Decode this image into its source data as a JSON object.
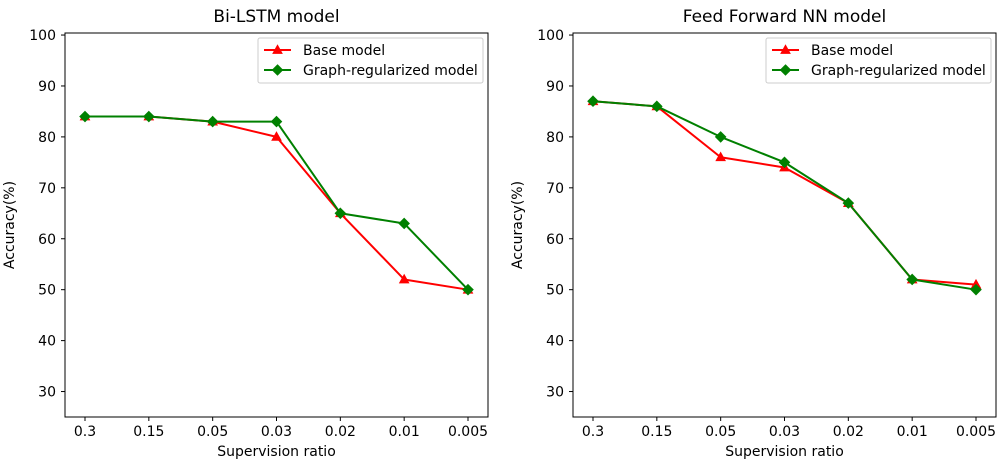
{
  "figure": {
    "background": "#ffffff",
    "text_color": "#000000",
    "legend_border_color": "#cccccc",
    "legend_background": "#ffffff"
  },
  "chart_data": [
    {
      "type": "line",
      "title": "Bi-LSTM model",
      "xlabel": "Supervision ratio",
      "ylabel": "Accuracy(%)",
      "categories": [
        "0.3",
        "0.15",
        "0.05",
        "0.03",
        "0.02",
        "0.01",
        "0.005"
      ],
      "yticks": [
        30,
        40,
        50,
        60,
        70,
        80,
        90,
        100
      ],
      "ylim": [
        25,
        100.4
      ],
      "grid": false,
      "legend_position": "upper right",
      "series": [
        {
          "name": "Base model",
          "color": "#ff0000",
          "marker": "triangle",
          "values": [
            84,
            84,
            83,
            80,
            65,
            52,
            50
          ]
        },
        {
          "name": "Graph-regularized model",
          "color": "#008000",
          "marker": "diamond",
          "values": [
            84,
            84,
            83,
            83,
            65,
            63,
            50
          ]
        }
      ]
    },
    {
      "type": "line",
      "title": "Feed Forward NN model",
      "xlabel": "Supervision ratio",
      "ylabel": "Accuracy(%)",
      "categories": [
        "0.3",
        "0.15",
        "0.05",
        "0.03",
        "0.02",
        "0.01",
        "0.005"
      ],
      "yticks": [
        30,
        40,
        50,
        60,
        70,
        80,
        90,
        100
      ],
      "ylim": [
        25,
        100.4
      ],
      "grid": false,
      "legend_position": "upper right",
      "series": [
        {
          "name": "Base model",
          "color": "#ff0000",
          "marker": "triangle",
          "values": [
            87,
            86,
            76,
            74,
            67,
            52,
            51
          ]
        },
        {
          "name": "Graph-regularized model",
          "color": "#008000",
          "marker": "diamond",
          "values": [
            87,
            86,
            80,
            75,
            67,
            52,
            50
          ]
        }
      ]
    }
  ]
}
